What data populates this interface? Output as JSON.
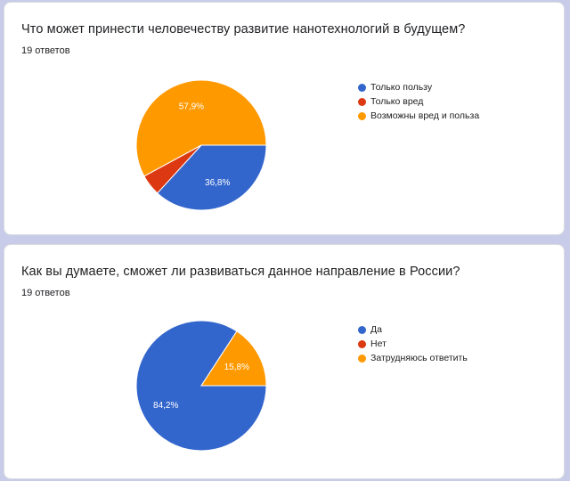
{
  "chart_data": [
    {
      "type": "pie",
      "title": "Что может принести человечеству развитие нанотехнологий в будущем?",
      "subtitle": "19 ответов",
      "categories": [
        "Только пользу",
        "Только вред",
        "Возможны вред и польза"
      ],
      "values": [
        36.8,
        5.3,
        57.9
      ],
      "value_labels": [
        "36,8%",
        "",
        "57,9%"
      ],
      "colors": [
        "#3366cc",
        "#dc3912",
        "#ff9900"
      ],
      "legend_position": "right"
    },
    {
      "type": "pie",
      "title": "Как вы думаете, сможет ли развиваться данное направление в России?",
      "subtitle": "19 ответов",
      "categories": [
        "Да",
        "Нет",
        "Затрудняюсь ответить"
      ],
      "values": [
        84.2,
        0,
        15.8
      ],
      "value_labels": [
        "84,2%",
        "",
        "15,8%"
      ],
      "colors": [
        "#3366cc",
        "#dc3912",
        "#ff9900"
      ],
      "legend_position": "right"
    }
  ]
}
